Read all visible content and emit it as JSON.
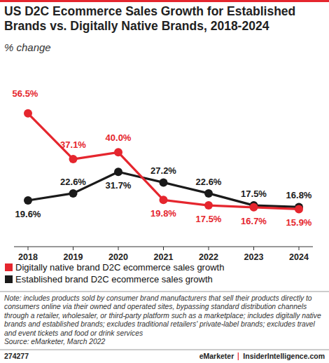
{
  "chart_data": {
    "type": "line",
    "title": "US D2C Ecommerce Sales Growth for Established Brands vs. Digitally Native Brands, 2018-2024",
    "subtitle": "% change",
    "categories": [
      "2018",
      "2019",
      "2020",
      "2021",
      "2022",
      "2023",
      "2024"
    ],
    "series": [
      {
        "name": "Digitally native brand D2C ecommerce sales growth",
        "color": "#e5262e",
        "marker": "circle",
        "values": [
          56.5,
          37.1,
          40.0,
          19.8,
          17.5,
          16.7,
          15.9
        ],
        "value_labels": [
          "56.5%",
          "37.1%",
          "40.0%",
          "19.8%",
          "17.5%",
          "16.7%",
          "15.9%"
        ]
      },
      {
        "name": "Established brand D2C ecommerce sales growth",
        "color": "#1a1a1a",
        "marker": "circle",
        "values": [
          19.6,
          22.6,
          31.7,
          27.2,
          22.6,
          17.5,
          16.8
        ],
        "value_labels": [
          "19.6%",
          "22.6%",
          "31.7%",
          "27.2%",
          "22.6%",
          "17.5%",
          "16.8%"
        ]
      }
    ],
    "ylim": [
      0,
      60
    ],
    "yticks": [
      0
    ],
    "tick_labels": "x",
    "data_labels": true,
    "grid": false,
    "legend": "bottom-left",
    "note": "Note: includes products sold by consumer brand manufacturers that sell their products directly to consumers online via their owned and operated sites, bypassing standard distribution channels through a retailer, wholesaler, or third-party platform such as a marketplace; includes digitally native brands and established brands; excludes traditional retailers' private-label brands; excludes travel and event tickets and food or drink services",
    "source": "Source: eMarketer, March 2022",
    "chart_id": "274277",
    "brand": "eMarketer",
    "website": "InsiderIntelligence.com"
  }
}
